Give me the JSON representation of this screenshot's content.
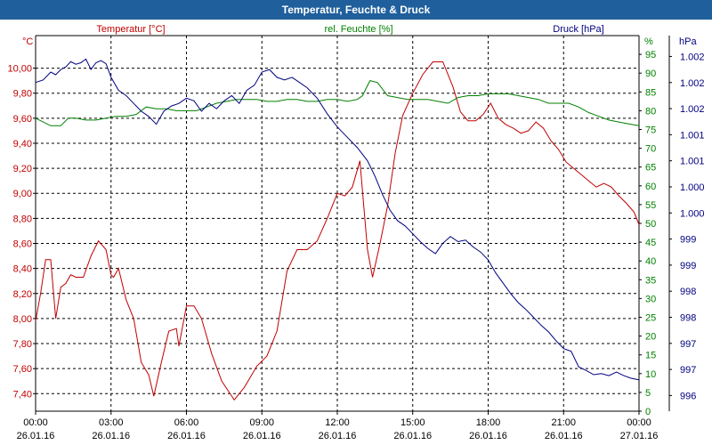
{
  "chart_data": {
    "type": "line",
    "title": "Temperatur, Feuchte & Druck",
    "series": [
      {
        "name": "Temperatur [°C]",
        "axis": "left",
        "unit": "°C",
        "color": "#c00000",
        "points": [
          [
            0.0,
            7.98
          ],
          [
            0.2,
            8.2
          ],
          [
            0.4,
            8.47
          ],
          [
            0.6,
            8.47
          ],
          [
            0.8,
            8.0
          ],
          [
            1.0,
            8.25
          ],
          [
            1.2,
            8.28
          ],
          [
            1.4,
            8.35
          ],
          [
            1.6,
            8.33
          ],
          [
            1.9,
            8.33
          ],
          [
            2.2,
            8.5
          ],
          [
            2.5,
            8.62
          ],
          [
            2.8,
            8.55
          ],
          [
            3.0,
            8.35
          ],
          [
            3.1,
            8.33
          ],
          [
            3.3,
            8.4
          ],
          [
            3.6,
            8.15
          ],
          [
            3.9,
            8.0
          ],
          [
            4.2,
            7.65
          ],
          [
            4.5,
            7.55
          ],
          [
            4.7,
            7.38
          ],
          [
            5.0,
            7.65
          ],
          [
            5.3,
            7.9
          ],
          [
            5.6,
            7.92
          ],
          [
            5.7,
            7.78
          ],
          [
            6.0,
            8.1
          ],
          [
            6.3,
            8.1
          ],
          [
            6.6,
            8.0
          ],
          [
            7.0,
            7.72
          ],
          [
            7.4,
            7.5
          ],
          [
            7.9,
            7.35
          ],
          [
            8.3,
            7.45
          ],
          [
            8.8,
            7.62
          ],
          [
            9.2,
            7.7
          ],
          [
            9.6,
            7.9
          ],
          [
            10.0,
            8.38
          ],
          [
            10.4,
            8.55
          ],
          [
            10.8,
            8.55
          ],
          [
            11.2,
            8.62
          ],
          [
            11.6,
            8.8
          ],
          [
            12.0,
            9.0
          ],
          [
            12.3,
            8.98
          ],
          [
            12.6,
            9.05
          ],
          [
            12.9,
            9.26
          ],
          [
            13.2,
            8.55
          ],
          [
            13.4,
            8.33
          ],
          [
            13.7,
            8.6
          ],
          [
            14.0,
            8.9
          ],
          [
            14.3,
            9.32
          ],
          [
            14.6,
            9.62
          ],
          [
            15.0,
            9.8
          ],
          [
            15.4,
            9.95
          ],
          [
            15.8,
            10.05
          ],
          [
            16.2,
            10.05
          ],
          [
            16.6,
            9.85
          ],
          [
            16.9,
            9.65
          ],
          [
            17.2,
            9.58
          ],
          [
            17.5,
            9.58
          ],
          [
            17.8,
            9.63
          ],
          [
            18.1,
            9.72
          ],
          [
            18.4,
            9.6
          ],
          [
            18.7,
            9.55
          ],
          [
            19.0,
            9.52
          ],
          [
            19.3,
            9.48
          ],
          [
            19.6,
            9.5
          ],
          [
            19.9,
            9.57
          ],
          [
            20.2,
            9.52
          ],
          [
            20.5,
            9.42
          ],
          [
            20.8,
            9.35
          ],
          [
            21.1,
            9.25
          ],
          [
            21.4,
            9.2
          ],
          [
            21.7,
            9.15
          ],
          [
            22.0,
            9.1
          ],
          [
            22.3,
            9.05
          ],
          [
            22.6,
            9.08
          ],
          [
            22.9,
            9.05
          ],
          [
            23.2,
            8.98
          ],
          [
            23.5,
            8.92
          ],
          [
            23.8,
            8.85
          ],
          [
            24.0,
            8.75
          ]
        ]
      },
      {
        "name": "rel. Feuchte [%]",
        "axis": "right1",
        "unit": "%",
        "color": "#008000",
        "points": [
          [
            0.0,
            78
          ],
          [
            0.3,
            77
          ],
          [
            0.6,
            76
          ],
          [
            1.0,
            76
          ],
          [
            1.3,
            78
          ],
          [
            1.6,
            78
          ],
          [
            2.0,
            77.5
          ],
          [
            2.4,
            77.5
          ],
          [
            2.8,
            78
          ],
          [
            3.2,
            78.5
          ],
          [
            3.6,
            78.5
          ],
          [
            4.0,
            79
          ],
          [
            4.4,
            81
          ],
          [
            4.8,
            80.5
          ],
          [
            5.2,
            80.5
          ],
          [
            5.6,
            80
          ],
          [
            6.0,
            80
          ],
          [
            6.4,
            80
          ],
          [
            6.8,
            81
          ],
          [
            7.2,
            82
          ],
          [
            7.6,
            82.5
          ],
          [
            8.0,
            83
          ],
          [
            8.4,
            83
          ],
          [
            8.8,
            83
          ],
          [
            9.2,
            82.5
          ],
          [
            9.6,
            82.5
          ],
          [
            10.0,
            83
          ],
          [
            10.4,
            83
          ],
          [
            10.8,
            82.5
          ],
          [
            11.2,
            82.5
          ],
          [
            11.6,
            83
          ],
          [
            12.0,
            83
          ],
          [
            12.4,
            82.5
          ],
          [
            12.8,
            83
          ],
          [
            13.0,
            84
          ],
          [
            13.3,
            88
          ],
          [
            13.6,
            87.5
          ],
          [
            14.0,
            84
          ],
          [
            14.4,
            83.5
          ],
          [
            14.8,
            83
          ],
          [
            15.2,
            83
          ],
          [
            15.6,
            83
          ],
          [
            16.0,
            82.5
          ],
          [
            16.4,
            82
          ],
          [
            16.8,
            83.5
          ],
          [
            17.2,
            84
          ],
          [
            17.6,
            84
          ],
          [
            18.0,
            84.5
          ],
          [
            18.4,
            84.5
          ],
          [
            18.8,
            84.5
          ],
          [
            19.2,
            84
          ],
          [
            19.6,
            83.5
          ],
          [
            20.0,
            83
          ],
          [
            20.4,
            82
          ],
          [
            20.8,
            82
          ],
          [
            21.2,
            82
          ],
          [
            21.6,
            81
          ],
          [
            22.0,
            79.5
          ],
          [
            22.4,
            78.5
          ],
          [
            22.8,
            77.5
          ],
          [
            23.2,
            77
          ],
          [
            23.6,
            76.5
          ],
          [
            24.0,
            76
          ]
        ]
      },
      {
        "name": "Druck [hPa]",
        "axis": "right2",
        "unit": "hPa",
        "color": "#000080",
        "points": [
          [
            0.0,
            1002.0
          ],
          [
            0.3,
            1002.05
          ],
          [
            0.6,
            1002.2
          ],
          [
            0.8,
            1002.15
          ],
          [
            1.0,
            1002.25
          ],
          [
            1.2,
            1002.3
          ],
          [
            1.4,
            1002.4
          ],
          [
            1.6,
            1002.35
          ],
          [
            1.8,
            1002.38
          ],
          [
            2.0,
            1002.45
          ],
          [
            2.2,
            1002.25
          ],
          [
            2.4,
            1002.38
          ],
          [
            2.6,
            1002.42
          ],
          [
            2.8,
            1002.36
          ],
          [
            3.0,
            1002.1
          ],
          [
            3.3,
            1001.85
          ],
          [
            3.6,
            1001.75
          ],
          [
            3.9,
            1001.6
          ],
          [
            4.2,
            1001.45
          ],
          [
            4.5,
            1001.35
          ],
          [
            4.8,
            1001.2
          ],
          [
            5.1,
            1001.45
          ],
          [
            5.4,
            1001.55
          ],
          [
            5.7,
            1001.6
          ],
          [
            6.0,
            1001.7
          ],
          [
            6.3,
            1001.65
          ],
          [
            6.6,
            1001.45
          ],
          [
            6.9,
            1001.6
          ],
          [
            7.2,
            1001.5
          ],
          [
            7.5,
            1001.65
          ],
          [
            7.8,
            1001.75
          ],
          [
            8.1,
            1001.6
          ],
          [
            8.4,
            1001.85
          ],
          [
            8.7,
            1001.95
          ],
          [
            9.0,
            1002.2
          ],
          [
            9.3,
            1002.25
          ],
          [
            9.6,
            1002.1
          ],
          [
            9.9,
            1002.05
          ],
          [
            10.2,
            1002.1
          ],
          [
            10.5,
            1002.0
          ],
          [
            10.8,
            1001.9
          ],
          [
            11.2,
            1001.7
          ],
          [
            11.6,
            1001.4
          ],
          [
            12.0,
            1001.15
          ],
          [
            12.4,
            1000.95
          ],
          [
            12.8,
            1000.75
          ],
          [
            13.2,
            1000.5
          ],
          [
            13.5,
            1000.2
          ],
          [
            13.8,
            999.85
          ],
          [
            14.1,
            999.55
          ],
          [
            14.4,
            999.35
          ],
          [
            14.7,
            999.25
          ],
          [
            15.0,
            999.1
          ],
          [
            15.3,
            998.95
          ],
          [
            15.6,
            998.82
          ],
          [
            15.9,
            998.72
          ],
          [
            16.2,
            998.92
          ],
          [
            16.5,
            999.05
          ],
          [
            16.8,
            998.95
          ],
          [
            17.1,
            998.98
          ],
          [
            17.4,
            998.85
          ],
          [
            17.7,
            998.75
          ],
          [
            18.0,
            998.6
          ],
          [
            18.3,
            998.35
          ],
          [
            18.6,
            998.15
          ],
          [
            18.9,
            997.95
          ],
          [
            19.2,
            997.78
          ],
          [
            19.5,
            997.65
          ],
          [
            19.8,
            997.5
          ],
          [
            20.1,
            997.35
          ],
          [
            20.4,
            997.22
          ],
          [
            20.7,
            997.05
          ],
          [
            21.0,
            996.9
          ],
          [
            21.3,
            996.85
          ],
          [
            21.6,
            996.55
          ],
          [
            21.9,
            996.48
          ],
          [
            22.2,
            996.4
          ],
          [
            22.5,
            996.42
          ],
          [
            22.8,
            996.38
          ],
          [
            23.1,
            996.45
          ],
          [
            23.4,
            996.38
          ],
          [
            23.7,
            996.33
          ],
          [
            24.0,
            996.3
          ]
        ]
      }
    ],
    "x": {
      "min": 0,
      "max": 24,
      "ticks": [
        {
          "v": 0,
          "time": "00:00",
          "date": "26.01.16"
        },
        {
          "v": 3,
          "time": "03:00",
          "date": "26.01.16"
        },
        {
          "v": 6,
          "time": "06:00",
          "date": "26.01.16"
        },
        {
          "v": 9,
          "time": "09:00",
          "date": "26.01.16"
        },
        {
          "v": 12,
          "time": "12:00",
          "date": "26.01.16"
        },
        {
          "v": 15,
          "time": "15:00",
          "date": "26.01.16"
        },
        {
          "v": 18,
          "time": "18:00",
          "date": "26.01.16"
        },
        {
          "v": 21,
          "time": "21:00",
          "date": "26.01.16"
        },
        {
          "v": 24,
          "time": "00:00",
          "date": "27.01.16"
        }
      ]
    },
    "y_left": {
      "label": "Temperatur [°C]",
      "unit": "°C",
      "min": 7.26,
      "max": 10.26,
      "ticks": [
        7.4,
        7.6,
        7.8,
        8.0,
        8.2,
        8.4,
        8.6,
        8.8,
        9.0,
        9.2,
        9.4,
        9.6,
        9.8,
        10.0
      ],
      "tick_labels": [
        "7,40",
        "7,60",
        "7,80",
        "8,00",
        "8,20",
        "8,40",
        "8,60",
        "8,80",
        "9,00",
        "9,20",
        "9,40",
        "9,60",
        "9,80",
        "10,00"
      ]
    },
    "y_right1": {
      "label": "rel. Feuchte [%]",
      "unit": "%",
      "min": 0,
      "max": 100,
      "ticks": [
        0,
        5,
        10,
        15,
        20,
        25,
        30,
        35,
        40,
        45,
        50,
        55,
        60,
        65,
        70,
        75,
        80,
        85,
        90,
        95
      ],
      "tick_labels": [
        "0",
        "5",
        "10",
        "15",
        "20",
        "25",
        "30",
        "35",
        "40",
        "45",
        "50",
        "55",
        "60",
        "65",
        "70",
        "75",
        "80",
        "85",
        "90",
        "95"
      ]
    },
    "y_right2": {
      "label": "Druck [hPa]",
      "unit": "hPa",
      "min": 995.7,
      "max": 1002.9,
      "ticks": [
        996.0,
        996.5,
        997.0,
        997.5,
        998.0,
        998.5,
        999.0,
        999.5,
        1000.0,
        1000.5,
        1001.0,
        1001.5,
        1002.0,
        1002.5
      ],
      "tick_labels": [
        "996",
        "997",
        "997",
        "998",
        "998",
        "999",
        "999",
        "1.000",
        "1.000",
        "1.001",
        "1.001",
        "1.002",
        "1.002",
        "1.002"
      ]
    },
    "grid": true
  }
}
